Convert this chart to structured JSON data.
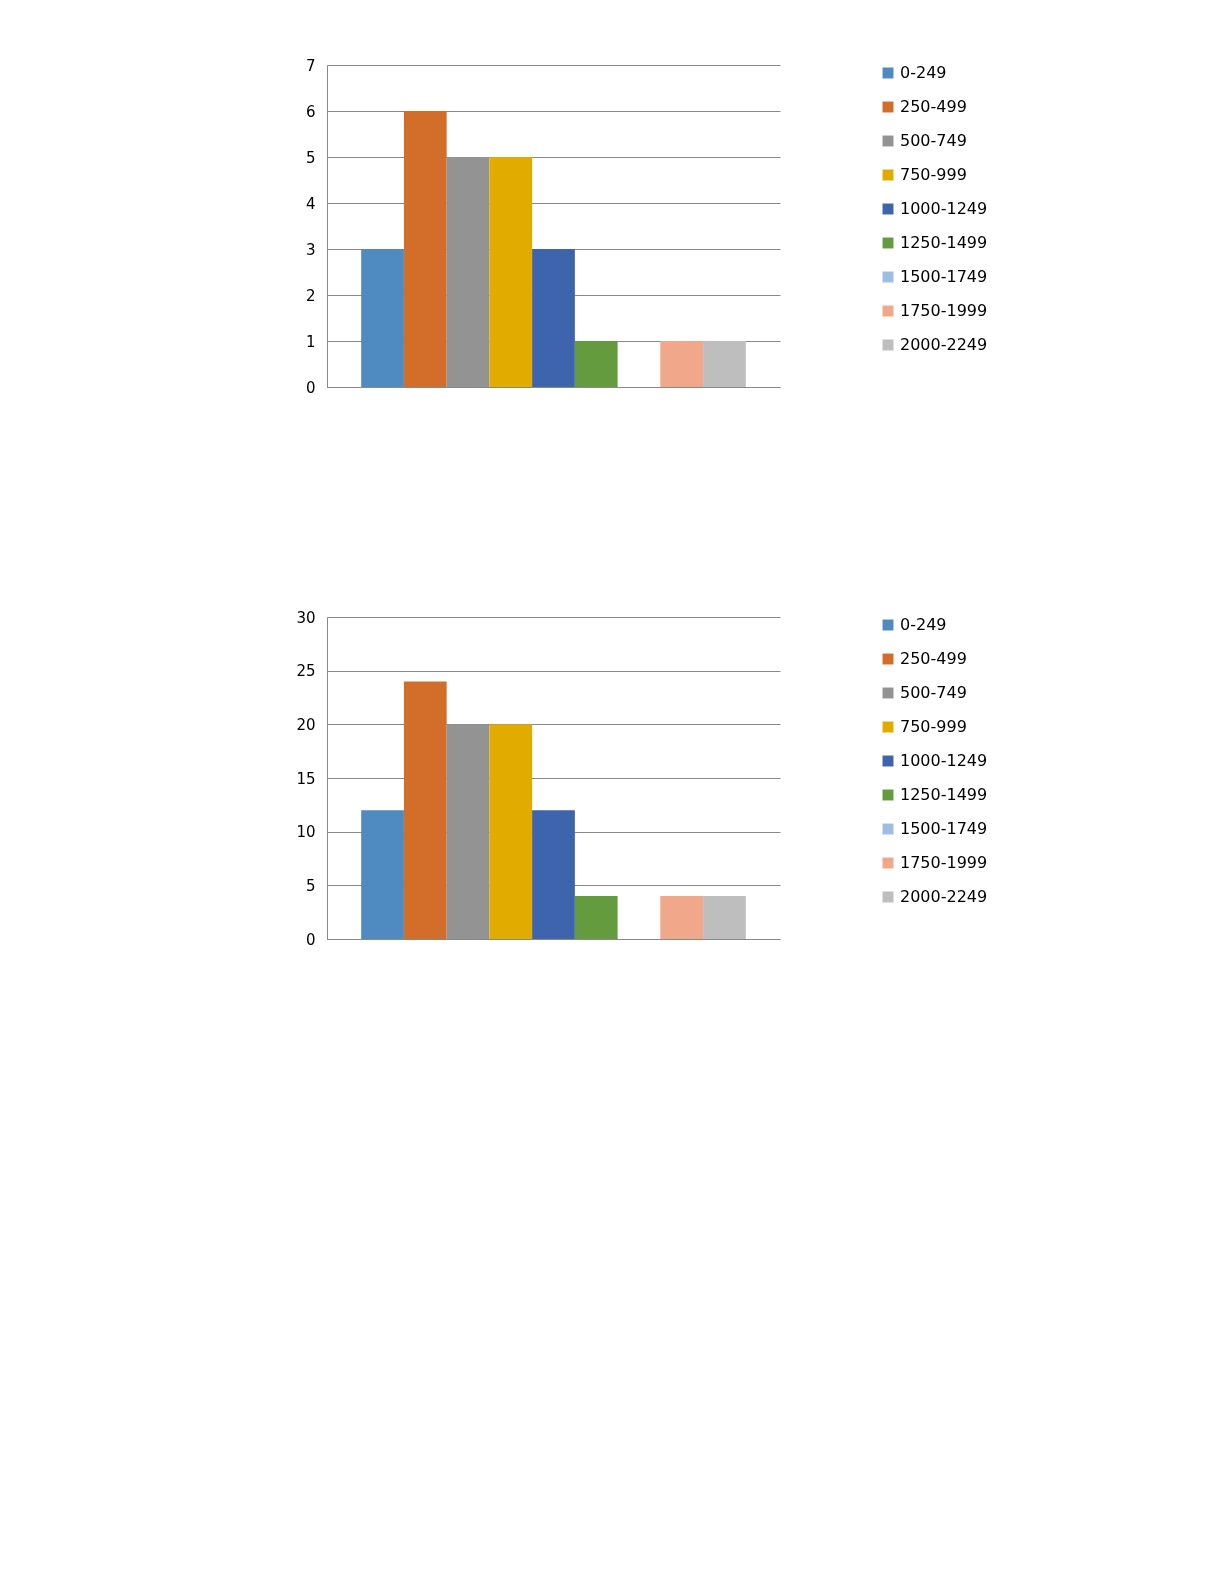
{
  "chart_data": [
    {
      "type": "bar",
      "categories": [
        null
      ],
      "ylim": [
        0,
        7
      ],
      "yticks": [
        0,
        1,
        2,
        3,
        4,
        5,
        6,
        7
      ],
      "grid": "y",
      "legend": "right",
      "series": [
        {
          "name": "0-249",
          "color": "#4f8bc1",
          "values": [
            3
          ]
        },
        {
          "name": "250-499",
          "color": "#d36d2a",
          "values": [
            6
          ]
        },
        {
          "name": "500-749",
          "color": "#939393",
          "values": [
            5
          ]
        },
        {
          "name": "750-999",
          "color": "#e2ab00",
          "values": [
            5
          ]
        },
        {
          "name": "1000-1249",
          "color": "#3d64ac",
          "values": [
            3
          ]
        },
        {
          "name": "1250-1499",
          "color": "#639b3e",
          "values": [
            1
          ]
        },
        {
          "name": "1500-1749",
          "color": "#9ebde3",
          "values": [
            0
          ]
        },
        {
          "name": "1750-1999",
          "color": "#f0a78a",
          "values": [
            1
          ]
        },
        {
          "name": "2000-2249",
          "color": "#bebebe",
          "values": [
            1
          ]
        }
      ]
    },
    {
      "type": "bar",
      "categories": [
        null
      ],
      "ylim": [
        0,
        30
      ],
      "yticks": [
        0,
        5,
        10,
        15,
        20,
        25,
        30
      ],
      "grid": "y",
      "legend": "right",
      "series": [
        {
          "name": "0-249",
          "color": "#4f8bc1",
          "values": [
            12
          ]
        },
        {
          "name": "250-499",
          "color": "#d36d2a",
          "values": [
            24
          ]
        },
        {
          "name": "500-749",
          "color": "#939393",
          "values": [
            20
          ]
        },
        {
          "name": "750-999",
          "color": "#e2ab00",
          "values": [
            20
          ]
        },
        {
          "name": "1000-1249",
          "color": "#3d64ac",
          "values": [
            12
          ]
        },
        {
          "name": "1250-1499",
          "color": "#639b3e",
          "values": [
            4
          ]
        },
        {
          "name": "1500-1749",
          "color": "#9ebde3",
          "values": [
            0
          ]
        },
        {
          "name": "1750-1999",
          "color": "#f0a78a",
          "values": [
            4
          ]
        },
        {
          "name": "2000-2249",
          "color": "#bebebe",
          "values": [
            4
          ]
        }
      ]
    }
  ]
}
